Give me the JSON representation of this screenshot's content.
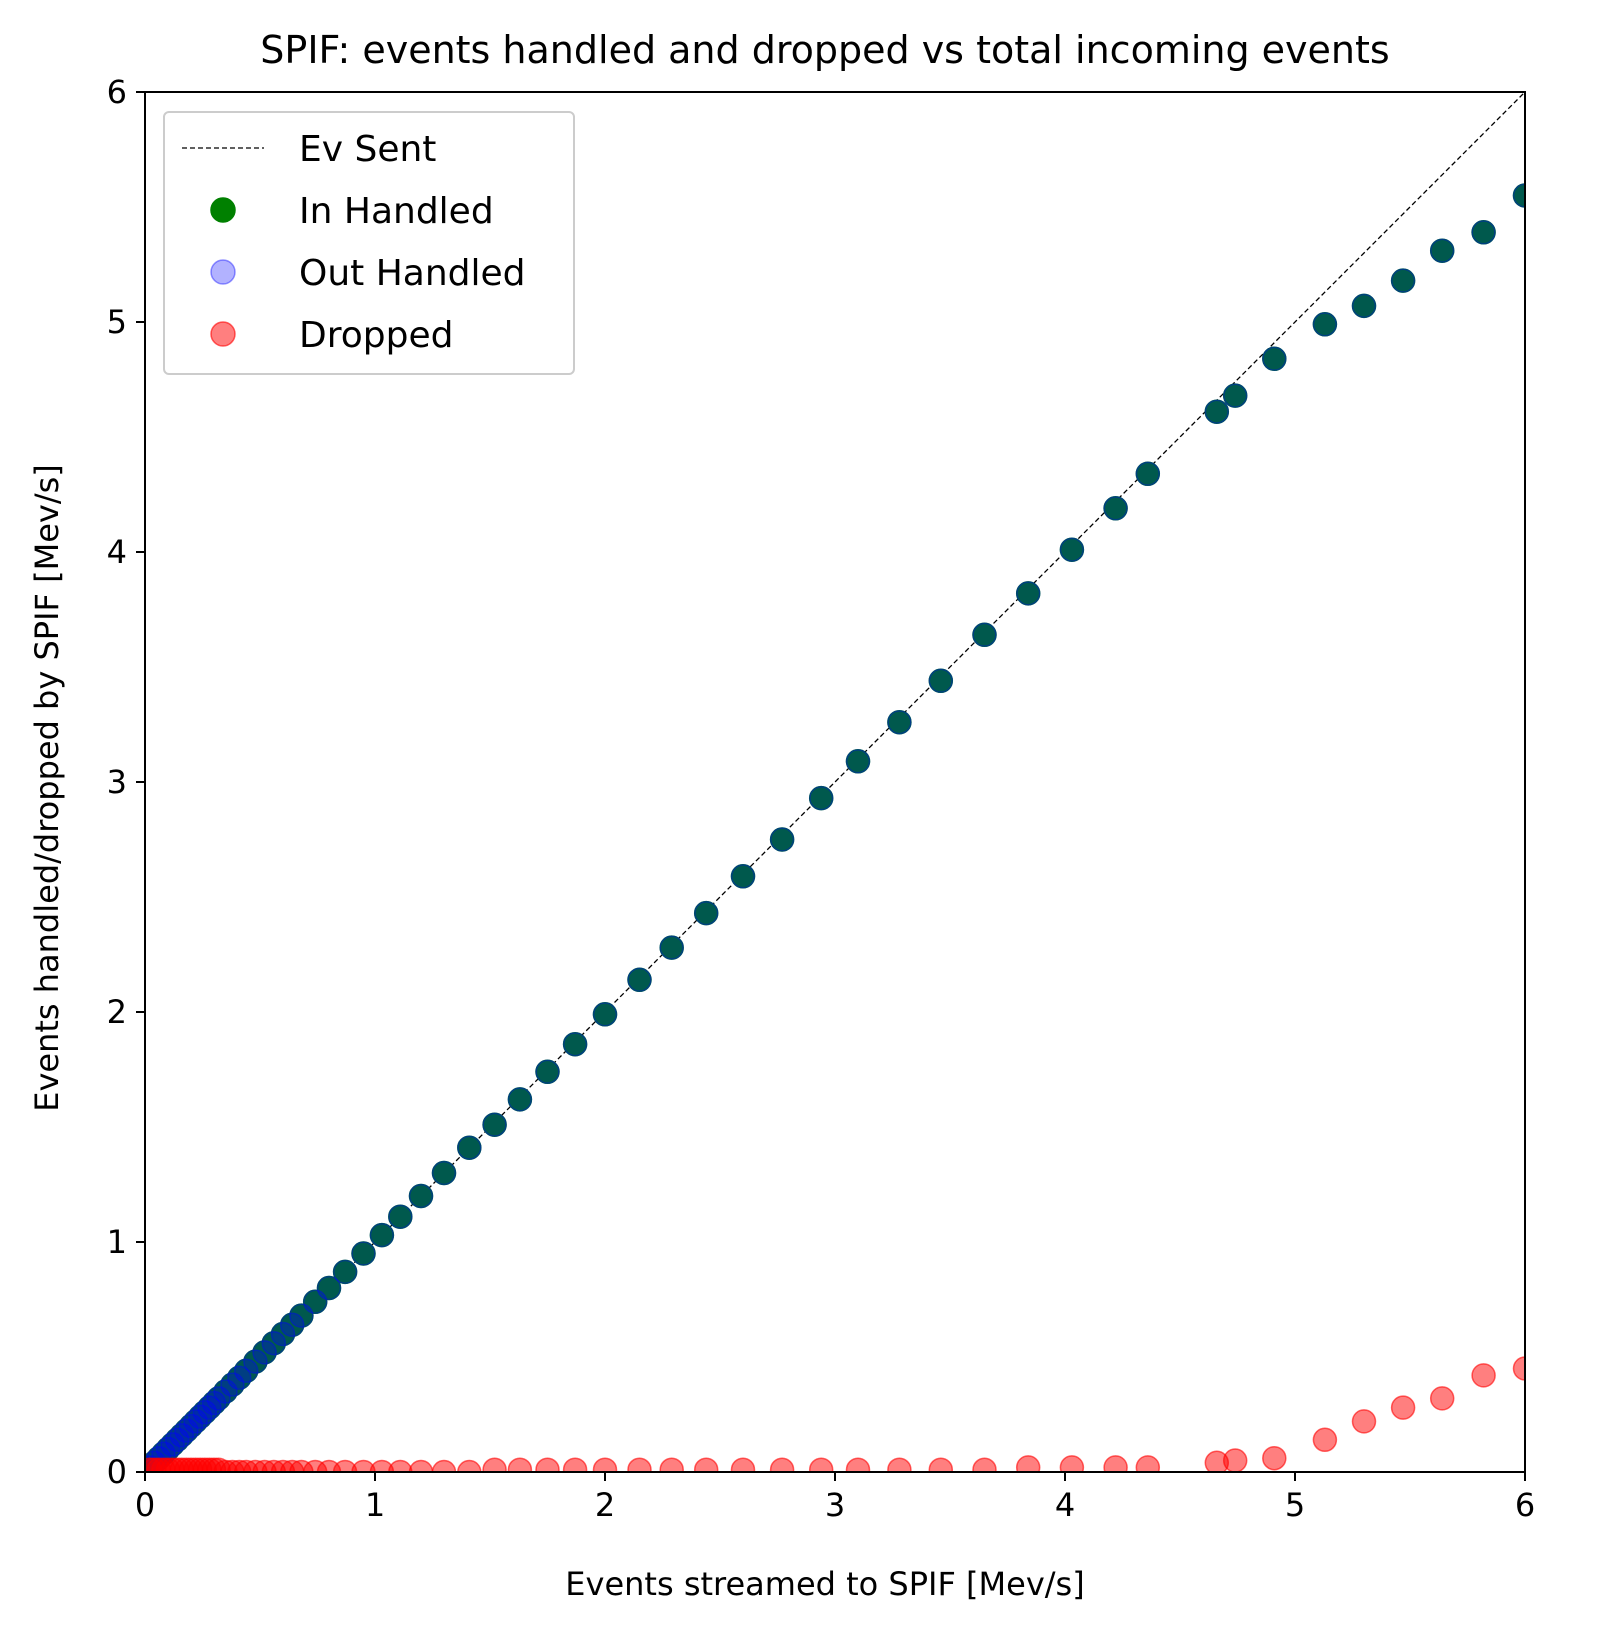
{
  "chart_data": {
    "type": "scatter",
    "title": "SPIF: events handled and dropped vs total incoming events",
    "xlabel": "Events streamed to SPIF [Mev/s]",
    "ylabel": "Events handled/dropped by SPIF [Mev/s]",
    "xlim": [
      0,
      6
    ],
    "ylim": [
      0,
      6
    ],
    "xticks": [
      "0",
      "1",
      "2",
      "3",
      "4",
      "5",
      "6"
    ],
    "yticks": [
      "0",
      "1",
      "2",
      "3",
      "4",
      "5",
      "6"
    ],
    "grid": false,
    "legend_position": "top-left",
    "line": {
      "name": "Ev Sent",
      "color": "#000000",
      "style": "dashed",
      "x": [
        0,
        6
      ],
      "y": [
        0,
        6
      ]
    },
    "series": [
      {
        "name": "In Handled",
        "color": "#008000",
        "opacity": 1.0,
        "x": [
          0.02,
          0.04,
          0.06,
          0.08,
          0.1,
          0.12,
          0.14,
          0.16,
          0.18,
          0.2,
          0.22,
          0.24,
          0.26,
          0.28,
          0.3,
          0.32,
          0.35,
          0.38,
          0.41,
          0.44,
          0.48,
          0.52,
          0.56,
          0.6,
          0.64,
          0.68,
          0.74,
          0.8,
          0.87,
          0.95,
          1.03,
          1.11,
          1.2,
          1.3,
          1.41,
          1.52,
          1.63,
          1.75,
          1.87,
          2.0,
          2.15,
          2.29,
          2.44,
          2.6,
          2.77,
          2.94,
          3.1,
          3.28,
          3.46,
          3.65,
          3.84,
          4.03,
          4.22,
          4.36,
          4.66,
          4.74,
          4.91,
          5.13,
          5.3,
          5.47,
          5.64,
          5.82,
          6.0
        ],
        "y": [
          0.02,
          0.04,
          0.06,
          0.08,
          0.1,
          0.12,
          0.14,
          0.16,
          0.18,
          0.2,
          0.22,
          0.24,
          0.26,
          0.28,
          0.3,
          0.32,
          0.35,
          0.38,
          0.41,
          0.44,
          0.48,
          0.52,
          0.56,
          0.6,
          0.64,
          0.68,
          0.74,
          0.8,
          0.87,
          0.95,
          1.03,
          1.11,
          1.2,
          1.3,
          1.41,
          1.51,
          1.62,
          1.74,
          1.86,
          1.99,
          2.14,
          2.28,
          2.43,
          2.59,
          2.75,
          2.93,
          3.09,
          3.26,
          3.44,
          3.64,
          3.82,
          4.01,
          4.19,
          4.34,
          4.61,
          4.68,
          4.84,
          4.99,
          5.07,
          5.18,
          5.31,
          5.39,
          5.55
        ]
      },
      {
        "name": "Out Handled",
        "color": "#0000ff",
        "opacity": 0.3,
        "x": [
          0.02,
          0.04,
          0.06,
          0.08,
          0.1,
          0.12,
          0.14,
          0.16,
          0.18,
          0.2,
          0.22,
          0.24,
          0.26,
          0.28,
          0.3,
          0.32,
          0.35,
          0.38,
          0.41,
          0.44,
          0.48,
          0.52,
          0.56,
          0.6,
          0.64,
          0.68,
          0.74,
          0.8,
          0.87,
          0.95,
          1.03,
          1.11,
          1.2,
          1.3,
          1.41,
          1.52,
          1.63,
          1.75,
          1.87,
          2.0,
          2.15,
          2.29,
          2.44,
          2.6,
          2.77,
          2.94,
          3.1,
          3.28,
          3.46,
          3.65,
          3.84,
          4.03,
          4.22,
          4.36,
          4.66,
          4.74,
          4.91,
          5.13,
          5.3,
          5.47,
          5.64,
          5.82,
          6.0
        ],
        "y": [
          0.02,
          0.04,
          0.06,
          0.08,
          0.1,
          0.12,
          0.14,
          0.16,
          0.18,
          0.2,
          0.22,
          0.24,
          0.26,
          0.28,
          0.3,
          0.32,
          0.35,
          0.38,
          0.41,
          0.44,
          0.48,
          0.52,
          0.56,
          0.6,
          0.64,
          0.68,
          0.74,
          0.8,
          0.87,
          0.95,
          1.03,
          1.11,
          1.2,
          1.3,
          1.41,
          1.51,
          1.62,
          1.74,
          1.86,
          1.99,
          2.14,
          2.28,
          2.43,
          2.59,
          2.75,
          2.93,
          3.09,
          3.26,
          3.44,
          3.64,
          3.82,
          4.01,
          4.19,
          4.34,
          4.61,
          4.68,
          4.84,
          4.99,
          5.07,
          5.18,
          5.31,
          5.39,
          5.55
        ]
      },
      {
        "name": "Dropped",
        "color": "#ff0000",
        "opacity": 0.5,
        "x": [
          0.02,
          0.04,
          0.06,
          0.08,
          0.1,
          0.12,
          0.14,
          0.16,
          0.18,
          0.2,
          0.22,
          0.24,
          0.26,
          0.28,
          0.3,
          0.32,
          0.35,
          0.38,
          0.41,
          0.44,
          0.48,
          0.52,
          0.56,
          0.6,
          0.64,
          0.68,
          0.74,
          0.8,
          0.87,
          0.95,
          1.03,
          1.11,
          1.2,
          1.3,
          1.41,
          1.52,
          1.63,
          1.75,
          1.87,
          2.0,
          2.15,
          2.29,
          2.44,
          2.6,
          2.77,
          2.94,
          3.1,
          3.28,
          3.46,
          3.65,
          3.84,
          4.03,
          4.22,
          4.36,
          4.66,
          4.74,
          4.91,
          5.13,
          5.3,
          5.47,
          5.64,
          5.82,
          6.0
        ],
        "y": [
          0.01,
          0.01,
          0.01,
          0.01,
          0.01,
          0.01,
          0.01,
          0.01,
          0.01,
          0.01,
          0.01,
          0.01,
          0.01,
          0.01,
          0.01,
          0.01,
          0.0,
          0.0,
          0.0,
          0.0,
          0.0,
          0.0,
          0.0,
          0.0,
          0.0,
          0.0,
          0.0,
          0.0,
          0.0,
          0.0,
          0.0,
          0.0,
          0.0,
          0.0,
          0.0,
          0.01,
          0.01,
          0.01,
          0.01,
          0.01,
          0.01,
          0.01,
          0.01,
          0.01,
          0.01,
          0.01,
          0.01,
          0.01,
          0.01,
          0.01,
          0.02,
          0.02,
          0.02,
          0.02,
          0.04,
          0.05,
          0.06,
          0.14,
          0.22,
          0.28,
          0.32,
          0.42,
          0.45
        ]
      }
    ]
  }
}
